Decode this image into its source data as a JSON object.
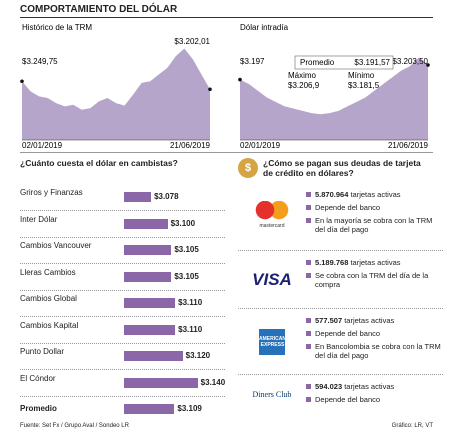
{
  "title": "COMPORTAMIENTO DEL DÓLAR",
  "chart_data": [
    {
      "type": "area",
      "title": "Histórico de la TRM",
      "x": [
        "02/01/2019",
        null,
        null,
        null,
        null,
        null,
        null,
        null,
        null,
        null,
        null,
        null,
        null,
        null,
        null,
        null,
        null,
        null,
        null,
        null,
        null,
        null,
        "21/06/2019"
      ],
      "series": [
        {
          "color": "#b6a5cb",
          "values": [
            3250,
            3190,
            3160,
            3150,
            3120,
            3100,
            3110,
            3080,
            3090,
            3130,
            3150,
            3120,
            3105,
            3170,
            3240,
            3250,
            3290,
            3330,
            3400,
            3445,
            3380,
            3290,
            3202
          ]
        }
      ],
      "ylim": [
        2900,
        3460
      ],
      "annotations": [
        "$3.249,75",
        "$3.202,01"
      ]
    },
    {
      "type": "area",
      "title": "Dólar intradía",
      "x": [
        "02/01/2019",
        null,
        null,
        null,
        null,
        null,
        null,
        null,
        null,
        null,
        null,
        null,
        null,
        null,
        null,
        null,
        null,
        null,
        null,
        null,
        null,
        "21/06/2019"
      ],
      "series": [
        {
          "color": "#b6a5cb",
          "values": [
            3197,
            3195,
            3192,
            3189,
            3187,
            3185,
            3184,
            3183,
            3182,
            3181.5,
            3182,
            3183,
            3185,
            3187,
            3189,
            3192,
            3195,
            3198,
            3201,
            3203,
            3206.9,
            3203.5
          ]
        }
      ],
      "ylim": [
        3170,
        3212
      ],
      "annotations": [
        "$3.197",
        "$3.203,50"
      ],
      "stats": [
        {
          "label": "Promedio",
          "value": "$3.191,57"
        },
        {
          "label": "Máximo",
          "value": "$3.206,9"
        },
        {
          "label": "Mínimo",
          "value": "$3.181,5"
        }
      ]
    },
    {
      "type": "bar",
      "title": "¿Cuánto cuesta el dólar en cambistas?",
      "categories": [
        "Griros y Finanzas",
        "Inter Dólar",
        "Cambios Vancouver",
        "Lleras Cambios",
        "Cambios Global",
        "Cambios Kapital",
        "Punto Dollar",
        "El Cóndor",
        "Promedio"
      ],
      "values": [
        3078,
        3100,
        3105,
        3105,
        3110,
        3110,
        3120,
        3140,
        3109
      ],
      "value_labels": [
        "$3.078",
        "$3.100",
        "$3.105",
        "$3.105",
        "$3.110",
        "$3.110",
        "$3.120",
        "$3.140",
        "$3.109"
      ],
      "color": "#8c67a8",
      "xlim": [
        3042,
        3175
      ]
    }
  ],
  "cards": {
    "icon": "$",
    "title": "¿Cómo se pagan sus deudas de tarjeta de crédito en dólares?",
    "rows": [
      {
        "brand": "mastercard",
        "items": [
          {
            "bold": "5.870.964",
            "text": "tarjetas activas"
          },
          {
            "text": "Depende del banco"
          },
          {
            "text": "En la mayoría se cobra con la TRM del día del pago"
          }
        ]
      },
      {
        "brand": "VISA",
        "items": [
          {
            "bold": "5.189.768",
            "text": "tarjetas activas"
          },
          {
            "text": "Se cobra con la TRM del día de la compra"
          }
        ]
      },
      {
        "brand": "AMERICAN EXPRESS",
        "items": [
          {
            "bold": "577.507",
            "text": "tarjetas activas"
          },
          {
            "text": "Depende del banco"
          },
          {
            "text": "En Bancolombia se cobra con la TRM del día del pago"
          }
        ]
      },
      {
        "brand": "Diners Club",
        "items": [
          {
            "bold": "594.023",
            "text": "tarjetas activas"
          },
          {
            "text": "Depende del banco"
          }
        ]
      }
    ]
  },
  "footer": {
    "source": "Fuente: Set Fx / Grupo Aval / Sondeo LR",
    "credit": "Gráfico: LR, VT"
  }
}
